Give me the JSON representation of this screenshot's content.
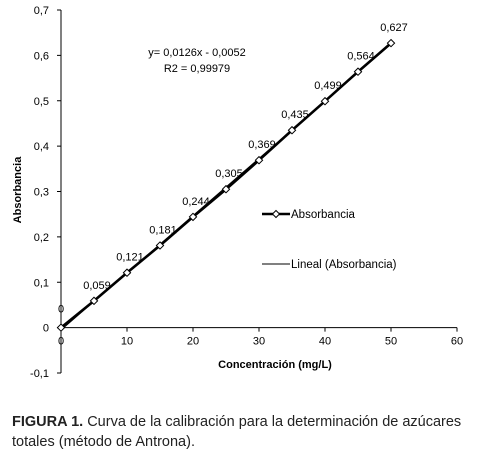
{
  "chart_data": {
    "type": "scatter",
    "xlabel": "Concentración (mg/L)",
    "ylabel": "Absorbancia",
    "xlim": [
      0,
      60
    ],
    "ylim": [
      -0.1,
      0.7
    ],
    "x_ticks": [
      "0",
      "10",
      "20",
      "30",
      "40",
      "50",
      "60"
    ],
    "y_ticks": [
      "-0,1",
      "0",
      "0,1",
      "0,2",
      "0,3",
      "0,4",
      "0,5",
      "0,6",
      "0,7"
    ],
    "grid": false,
    "legend_position": "right",
    "series": [
      {
        "name": "Absorbancia",
        "marker": "diamond-open",
        "color": "#000000",
        "x": [
          0,
          5,
          10,
          15,
          20,
          25,
          30,
          35,
          40,
          45,
          50
        ],
        "y": [
          0,
          0.059,
          0.121,
          0.181,
          0.244,
          0.305,
          0.369,
          0.435,
          0.499,
          0.564,
          0.627
        ],
        "labels": [
          "0",
          "0,059",
          "0,121",
          "0,181",
          "0,244",
          "0,305",
          "0,369",
          "0,435",
          "0,499",
          "0,564",
          "0,627"
        ]
      },
      {
        "name": "Lineal (Absorbancia)",
        "kind": "trendline",
        "color": "#000000",
        "slope": 0.0126,
        "intercept": -0.0052
      }
    ],
    "annotations": {
      "equation": "y= 0,0126x - 0,0052",
      "r2": "R2 = 0,99979"
    }
  },
  "caption": {
    "label": "FIGURA 1.",
    "text": " Curva de la calibración para la determinación de azúcares totales (método de Antrona)."
  }
}
